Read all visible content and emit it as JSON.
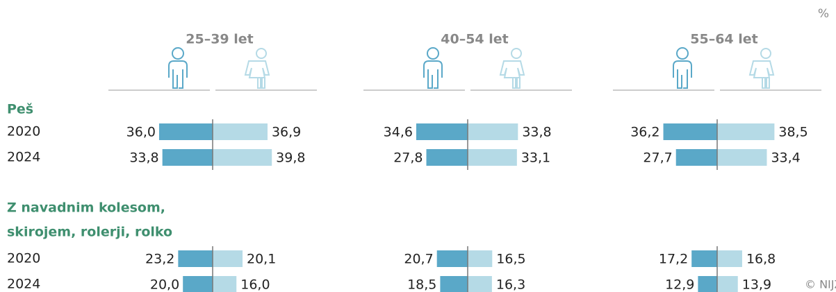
{
  "chart_data": {
    "type": "butterfly",
    "unit": "%",
    "credit": "© NIJZ",
    "male_color": "#5aa8c8",
    "female_color": "#b5dae6",
    "groups": [
      "25–39 let",
      "40–54 let",
      "55–64 let"
    ],
    "sections": [
      {
        "label": [
          "Peš"
        ],
        "years": [
          "2020",
          "2024"
        ],
        "male": [
          [
            36.0,
            33.8
          ],
          [
            34.6,
            27.8
          ],
          [
            36.2,
            27.7
          ]
        ],
        "male_labels": [
          [
            "36,0",
            "33,8"
          ],
          [
            "34,6",
            "27,8"
          ],
          [
            "36,2",
            "27,7"
          ]
        ],
        "female": [
          [
            36.9,
            39.8
          ],
          [
            33.8,
            33.1
          ],
          [
            38.5,
            33.4
          ]
        ],
        "female_labels": [
          [
            "36,9",
            "39,8"
          ],
          [
            "33,8",
            "33,1"
          ],
          [
            "38,5",
            "33,4"
          ]
        ]
      },
      {
        "label": [
          "Z navadnim kolesom,",
          "skirojem, rolerji, rolko"
        ],
        "years": [
          "2020",
          "2024"
        ],
        "male": [
          [
            23.2,
            20.0
          ],
          [
            20.7,
            18.5
          ],
          [
            17.2,
            12.9
          ]
        ],
        "male_labels": [
          [
            "23,2",
            "20,0"
          ],
          [
            "20,7",
            "18,5"
          ],
          [
            "17,2",
            "12,9"
          ]
        ],
        "female": [
          [
            20.1,
            16.0
          ],
          [
            16.5,
            16.3
          ],
          [
            16.8,
            13.9
          ]
        ],
        "female_labels": [
          [
            "20,1",
            "16,0"
          ],
          [
            "16,5",
            "16,3"
          ],
          [
            "16,8",
            "13,9"
          ]
        ]
      }
    ]
  }
}
